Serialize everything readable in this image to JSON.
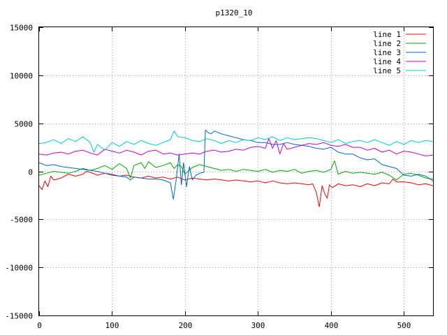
{
  "chart_data": {
    "type": "line",
    "title": "p1320_10",
    "xlabel": "",
    "ylabel": "",
    "xlim": [
      0,
      540
    ],
    "ylim": [
      -15000,
      15000
    ],
    "x_ticks": [
      0,
      100,
      200,
      300,
      400,
      500
    ],
    "y_ticks": [
      -15000,
      -10000,
      -5000,
      0,
      5000,
      10000,
      15000
    ],
    "grid": true,
    "legend_position": "top-right",
    "series": [
      {
        "name": "line 1",
        "color": "#ff0000",
        "points": [
          [
            0,
            -1500
          ],
          [
            4,
            -1900
          ],
          [
            8,
            -1000
          ],
          [
            12,
            -1600
          ],
          [
            16,
            -500
          ],
          [
            20,
            -900
          ],
          [
            30,
            -700
          ],
          [
            40,
            -300
          ],
          [
            50,
            -500
          ],
          [
            60,
            -300
          ],
          [
            65,
            0
          ],
          [
            70,
            -100
          ],
          [
            80,
            -400
          ],
          [
            90,
            -200
          ],
          [
            100,
            -400
          ],
          [
            110,
            -500
          ],
          [
            120,
            -400
          ],
          [
            130,
            -600
          ],
          [
            140,
            -700
          ],
          [
            150,
            -500
          ],
          [
            160,
            -700
          ],
          [
            170,
            -600
          ],
          [
            180,
            -800
          ],
          [
            190,
            -600
          ],
          [
            200,
            -900
          ],
          [
            210,
            -700
          ],
          [
            220,
            -800
          ],
          [
            230,
            -900
          ],
          [
            240,
            -800
          ],
          [
            250,
            -900
          ],
          [
            260,
            -1000
          ],
          [
            270,
            -900
          ],
          [
            280,
            -1000
          ],
          [
            290,
            -1100
          ],
          [
            300,
            -1000
          ],
          [
            310,
            -1200
          ],
          [
            320,
            -1000
          ],
          [
            330,
            -1200
          ],
          [
            340,
            -1300
          ],
          [
            350,
            -1200
          ],
          [
            360,
            -1300
          ],
          [
            370,
            -1400
          ],
          [
            375,
            -1300
          ],
          [
            380,
            -2200
          ],
          [
            384,
            -3700
          ],
          [
            388,
            -1500
          ],
          [
            392,
            -2400
          ],
          [
            395,
            -2800
          ],
          [
            398,
            -1400
          ],
          [
            402,
            -1700
          ],
          [
            410,
            -1300
          ],
          [
            420,
            -1500
          ],
          [
            430,
            -1400
          ],
          [
            440,
            -1600
          ],
          [
            450,
            -1300
          ],
          [
            460,
            -1500
          ],
          [
            470,
            -1200
          ],
          [
            480,
            -1300
          ],
          [
            485,
            -800
          ],
          [
            490,
            -1100
          ],
          [
            500,
            -1100
          ],
          [
            510,
            -1200
          ],
          [
            520,
            -1400
          ],
          [
            530,
            -1300
          ],
          [
            540,
            -1500
          ]
        ]
      },
      {
        "name": "line 2",
        "color": "#00aa00",
        "points": [
          [
            0,
            -400
          ],
          [
            10,
            -200
          ],
          [
            20,
            0
          ],
          [
            30,
            -100
          ],
          [
            40,
            -200
          ],
          [
            50,
            0
          ],
          [
            60,
            300
          ],
          [
            70,
            100
          ],
          [
            80,
            300
          ],
          [
            90,
            600
          ],
          [
            100,
            200
          ],
          [
            110,
            800
          ],
          [
            120,
            300
          ],
          [
            125,
            -700
          ],
          [
            130,
            600
          ],
          [
            140,
            900
          ],
          [
            145,
            300
          ],
          [
            150,
            1000
          ],
          [
            160,
            400
          ],
          [
            170,
            600
          ],
          [
            180,
            900
          ],
          [
            185,
            300
          ],
          [
            190,
            700
          ],
          [
            195,
            500
          ],
          [
            200,
            -300
          ],
          [
            210,
            400
          ],
          [
            220,
            700
          ],
          [
            230,
            500
          ],
          [
            240,
            300
          ],
          [
            250,
            100
          ],
          [
            260,
            200
          ],
          [
            270,
            0
          ],
          [
            280,
            200
          ],
          [
            290,
            100
          ],
          [
            300,
            0
          ],
          [
            310,
            200
          ],
          [
            320,
            -100
          ],
          [
            330,
            100
          ],
          [
            340,
            0
          ],
          [
            350,
            200
          ],
          [
            360,
            -200
          ],
          [
            370,
            0
          ],
          [
            380,
            100
          ],
          [
            390,
            -100
          ],
          [
            400,
            200
          ],
          [
            405,
            1100
          ],
          [
            410,
            -300
          ],
          [
            420,
            0
          ],
          [
            430,
            -200
          ],
          [
            440,
            -100
          ],
          [
            450,
            -200
          ],
          [
            460,
            -300
          ],
          [
            470,
            -100
          ],
          [
            480,
            -400
          ],
          [
            490,
            -900
          ],
          [
            500,
            -300
          ],
          [
            510,
            -200
          ],
          [
            520,
            -400
          ],
          [
            530,
            -700
          ],
          [
            540,
            -800
          ]
        ]
      },
      {
        "name": "line 3",
        "color": "#0066cc",
        "points": [
          [
            0,
            900
          ],
          [
            10,
            600
          ],
          [
            20,
            700
          ],
          [
            30,
            500
          ],
          [
            40,
            400
          ],
          [
            50,
            300
          ],
          [
            60,
            200
          ],
          [
            70,
            100
          ],
          [
            80,
            0
          ],
          [
            90,
            -200
          ],
          [
            100,
            -300
          ],
          [
            110,
            -500
          ],
          [
            120,
            -600
          ],
          [
            125,
            -900
          ],
          [
            130,
            -600
          ],
          [
            140,
            -700
          ],
          [
            150,
            -800
          ],
          [
            160,
            -800
          ],
          [
            170,
            -900
          ],
          [
            180,
            -1200
          ],
          [
            184,
            -2900
          ],
          [
            188,
            -800
          ],
          [
            192,
            1800
          ],
          [
            195,
            -1400
          ],
          [
            198,
            900
          ],
          [
            202,
            -1600
          ],
          [
            206,
            500
          ],
          [
            210,
            -900
          ],
          [
            215,
            -400
          ],
          [
            220,
            -200
          ],
          [
            226,
            -100
          ],
          [
            228,
            4300
          ],
          [
            232,
            4000
          ],
          [
            236,
            3900
          ],
          [
            240,
            4200
          ],
          [
            250,
            3900
          ],
          [
            260,
            3700
          ],
          [
            270,
            3500
          ],
          [
            280,
            3300
          ],
          [
            290,
            3200
          ],
          [
            300,
            3000
          ],
          [
            310,
            3000
          ],
          [
            320,
            2800
          ],
          [
            330,
            2800
          ],
          [
            340,
            3000
          ],
          [
            350,
            2800
          ],
          [
            360,
            2700
          ],
          [
            370,
            2600
          ],
          [
            380,
            2400
          ],
          [
            390,
            2300
          ],
          [
            400,
            2500
          ],
          [
            410,
            2000
          ],
          [
            420,
            1800
          ],
          [
            430,
            1800
          ],
          [
            440,
            1400
          ],
          [
            450,
            1200
          ],
          [
            460,
            1300
          ],
          [
            470,
            700
          ],
          [
            480,
            500
          ],
          [
            490,
            300
          ],
          [
            500,
            -400
          ],
          [
            510,
            -500
          ],
          [
            520,
            -300
          ],
          [
            530,
            -500
          ],
          [
            540,
            -1000
          ]
        ]
      },
      {
        "name": "line 4",
        "color": "#cc00cc",
        "points": [
          [
            0,
            1800
          ],
          [
            10,
            1700
          ],
          [
            20,
            1900
          ],
          [
            30,
            2000
          ],
          [
            40,
            1800
          ],
          [
            50,
            2100
          ],
          [
            60,
            2200
          ],
          [
            70,
            1900
          ],
          [
            80,
            1700
          ],
          [
            90,
            2300
          ],
          [
            100,
            2100
          ],
          [
            110,
            1900
          ],
          [
            120,
            2200
          ],
          [
            130,
            2000
          ],
          [
            140,
            1700
          ],
          [
            150,
            2100
          ],
          [
            160,
            2200
          ],
          [
            170,
            1800
          ],
          [
            180,
            1900
          ],
          [
            190,
            1700
          ],
          [
            200,
            1800
          ],
          [
            210,
            1900
          ],
          [
            220,
            1800
          ],
          [
            230,
            2100
          ],
          [
            240,
            2200
          ],
          [
            250,
            2000
          ],
          [
            260,
            2100
          ],
          [
            270,
            2300
          ],
          [
            280,
            2200
          ],
          [
            290,
            2500
          ],
          [
            300,
            2600
          ],
          [
            310,
            2400
          ],
          [
            315,
            3400
          ],
          [
            320,
            2400
          ],
          [
            325,
            3200
          ],
          [
            330,
            1800
          ],
          [
            335,
            2900
          ],
          [
            340,
            2300
          ],
          [
            350,
            2500
          ],
          [
            360,
            2700
          ],
          [
            370,
            2900
          ],
          [
            380,
            2800
          ],
          [
            390,
            3000
          ],
          [
            400,
            2700
          ],
          [
            410,
            2600
          ],
          [
            420,
            2800
          ],
          [
            430,
            2500
          ],
          [
            440,
            2500
          ],
          [
            450,
            2200
          ],
          [
            460,
            2400
          ],
          [
            470,
            2000
          ],
          [
            480,
            2200
          ],
          [
            490,
            1800
          ],
          [
            500,
            2100
          ],
          [
            510,
            2000
          ],
          [
            520,
            1800
          ],
          [
            530,
            1600
          ],
          [
            540,
            1700
          ]
        ]
      },
      {
        "name": "line 5",
        "color": "#00cccc",
        "points": [
          [
            0,
            2900
          ],
          [
            10,
            3000
          ],
          [
            20,
            3300
          ],
          [
            30,
            2900
          ],
          [
            40,
            3400
          ],
          [
            50,
            3100
          ],
          [
            60,
            3600
          ],
          [
            70,
            3000
          ],
          [
            75,
            2000
          ],
          [
            80,
            2800
          ],
          [
            90,
            2200
          ],
          [
            100,
            3000
          ],
          [
            110,
            2600
          ],
          [
            120,
            3100
          ],
          [
            130,
            2800
          ],
          [
            140,
            3200
          ],
          [
            150,
            2900
          ],
          [
            160,
            2700
          ],
          [
            170,
            3000
          ],
          [
            180,
            3300
          ],
          [
            185,
            4200
          ],
          [
            190,
            3600
          ],
          [
            200,
            3500
          ],
          [
            210,
            3200
          ],
          [
            220,
            3100
          ],
          [
            230,
            3400
          ],
          [
            240,
            3200
          ],
          [
            250,
            2900
          ],
          [
            260,
            3200
          ],
          [
            270,
            3000
          ],
          [
            280,
            3300
          ],
          [
            290,
            3200
          ],
          [
            300,
            3500
          ],
          [
            310,
            3300
          ],
          [
            320,
            3600
          ],
          [
            330,
            3200
          ],
          [
            340,
            3500
          ],
          [
            350,
            3300
          ],
          [
            360,
            3400
          ],
          [
            370,
            3500
          ],
          [
            380,
            3400
          ],
          [
            390,
            3200
          ],
          [
            400,
            3000
          ],
          [
            410,
            3300
          ],
          [
            420,
            2900
          ],
          [
            430,
            3100
          ],
          [
            440,
            3200
          ],
          [
            450,
            3000
          ],
          [
            460,
            3300
          ],
          [
            470,
            3000
          ],
          [
            480,
            2700
          ],
          [
            490,
            3100
          ],
          [
            500,
            2800
          ],
          [
            510,
            3200
          ],
          [
            520,
            3000
          ],
          [
            530,
            3200
          ],
          [
            540,
            3100
          ]
        ]
      }
    ]
  }
}
